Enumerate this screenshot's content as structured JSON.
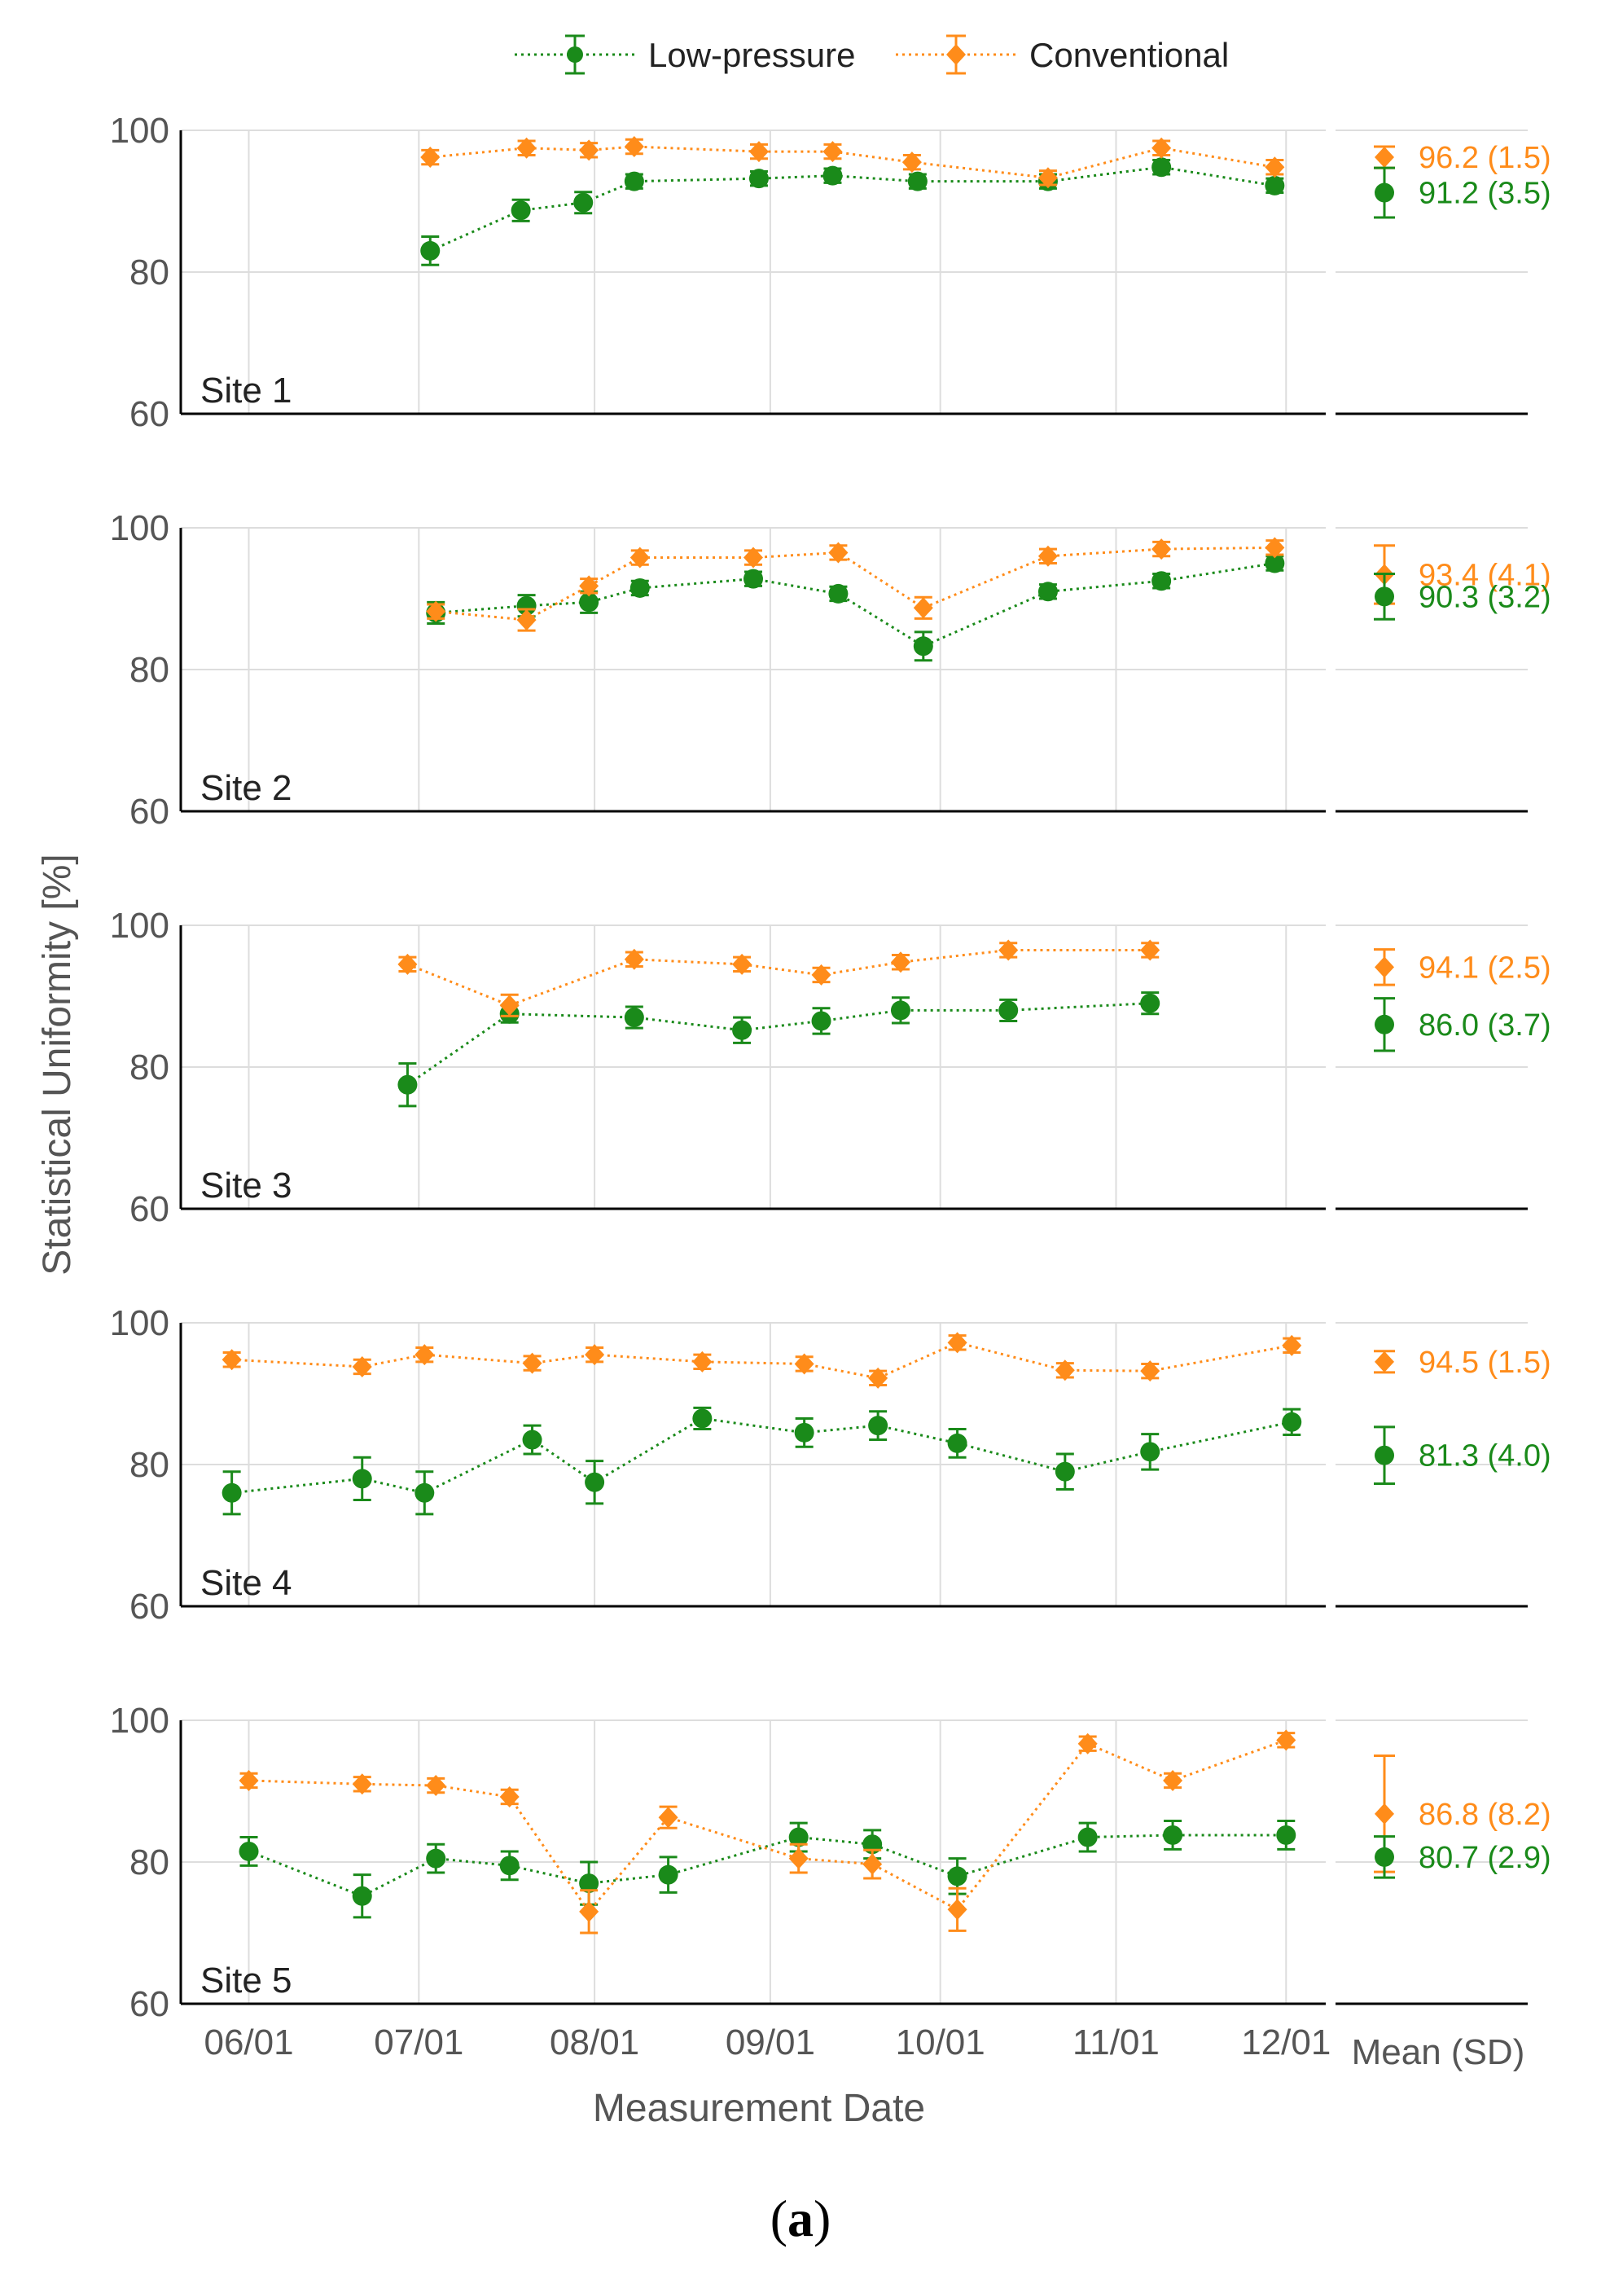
{
  "colors": {
    "low": "#1a8a1a",
    "conv": "#ff8c1a",
    "grid": "#dddddd",
    "axis": "#000000"
  },
  "legend": {
    "low_label": "Low-pressure",
    "conv_label": "Conventional"
  },
  "labels": {
    "ylabel": "Statistical Uniformity [%]",
    "xlabel": "Measurement Date",
    "mean_header": "Mean (SD)",
    "caption_open": "(",
    "caption_letter": "a",
    "caption_close": ")"
  },
  "chart_data": {
    "type": "line",
    "x_ticks": [
      {
        "date": "06/01",
        "day": 0
      },
      {
        "date": "07/01",
        "day": 30
      },
      {
        "date": "08/01",
        "day": 61
      },
      {
        "date": "09/01",
        "day": 92
      },
      {
        "date": "10/01",
        "day": 122
      },
      {
        "date": "11/01",
        "day": 153
      },
      {
        "date": "12/01",
        "day": 183
      }
    ],
    "x_unit": "days since 06/01",
    "xlim": [
      -12,
      190
    ],
    "ylim": [
      60,
      100
    ],
    "y_ticks": [
      60,
      80,
      100
    ],
    "grid": true,
    "legend_position": "top-center",
    "panels": [
      {
        "label": "Site 1",
        "series": [
          {
            "name": "Low-pressure",
            "points": [
              [
                32,
                83,
                2.0
              ],
              [
                48,
                88.7,
                1.5
              ],
              [
                59,
                89.8,
                1.5
              ],
              [
                68,
                92.8,
                1.0
              ],
              [
                90,
                93.2,
                1.0
              ],
              [
                103,
                93.6,
                1.0
              ],
              [
                118,
                92.8,
                1.0
              ],
              [
                141,
                92.8,
                1.0
              ],
              [
                161,
                94.8,
                1.0
              ],
              [
                181,
                92.2,
                1.0
              ]
            ]
          },
          {
            "name": "Conventional",
            "points": [
              [
                32,
                96.2,
                1.0
              ],
              [
                49,
                97.5,
                1.0
              ],
              [
                60,
                97.2,
                1.0
              ],
              [
                68,
                97.7,
                1.0
              ],
              [
                90,
                97.0,
                1.0
              ],
              [
                103,
                97.0,
                1.0
              ],
              [
                117,
                95.5,
                1.0
              ],
              [
                141,
                93.3,
                1.0
              ],
              [
                161,
                97.5,
                1.0
              ],
              [
                181,
                94.8,
                1.0
              ]
            ]
          }
        ],
        "mean": {
          "conv": {
            "value": 96.2,
            "sd": 1.5,
            "label": "96.2 (1.5)"
          },
          "low": {
            "value": 91.2,
            "sd": 3.5,
            "label": "91.2 (3.5)"
          }
        }
      },
      {
        "label": "Site 2",
        "series": [
          {
            "name": "Low-pressure",
            "points": [
              [
                33,
                88.0,
                1.5
              ],
              [
                49,
                89.0,
                1.5
              ],
              [
                60,
                89.5,
                1.5
              ],
              [
                69,
                91.5,
                1.0
              ],
              [
                89,
                92.8,
                1.0
              ],
              [
                104,
                90.7,
                1.0
              ],
              [
                119,
                83.3,
                2.0
              ],
              [
                141,
                91.0,
                1.0
              ],
              [
                161,
                92.5,
                1.0
              ],
              [
                181,
                95.0,
                1.0
              ]
            ]
          },
          {
            "name": "Conventional",
            "points": [
              [
                33,
                88.2,
                1.0
              ],
              [
                49,
                87.0,
                1.5
              ],
              [
                60,
                91.8,
                1.0
              ],
              [
                69,
                95.8,
                1.0
              ],
              [
                89,
                95.8,
                1.0
              ],
              [
                104,
                96.5,
                1.0
              ],
              [
                119,
                88.7,
                1.5
              ],
              [
                141,
                96.0,
                1.0
              ],
              [
                161,
                97.0,
                1.0
              ],
              [
                181,
                97.2,
                1.0
              ]
            ]
          }
        ],
        "mean": {
          "conv": {
            "value": 93.4,
            "sd": 4.1,
            "label": "93.4 (4.1)"
          },
          "low": {
            "value": 90.3,
            "sd": 3.2,
            "label": "90.3 (3.2)"
          }
        }
      },
      {
        "label": "Site 3",
        "series": [
          {
            "name": "Low-pressure",
            "points": [
              [
                28,
                77.5,
                3.0
              ],
              [
                46,
                87.5,
                1.2
              ],
              [
                68,
                87.0,
                1.5
              ],
              [
                87,
                85.2,
                1.8
              ],
              [
                101,
                86.5,
                1.8
              ],
              [
                115,
                88.0,
                1.8
              ],
              [
                134,
                88.0,
                1.5
              ],
              [
                159,
                89.0,
                1.5
              ]
            ]
          },
          {
            "name": "Conventional",
            "points": [
              [
                28,
                94.5,
                1.0
              ],
              [
                46,
                88.7,
                1.5
              ],
              [
                68,
                95.2,
                1.0
              ],
              [
                87,
                94.5,
                1.0
              ],
              [
                101,
                93.0,
                1.0
              ],
              [
                115,
                94.8,
                1.0
              ],
              [
                134,
                96.5,
                1.0
              ],
              [
                159,
                96.5,
                1.0
              ]
            ]
          }
        ],
        "mean": {
          "conv": {
            "value": 94.1,
            "sd": 2.5,
            "label": "94.1 (2.5)"
          },
          "low": {
            "value": 86.0,
            "sd": 3.7,
            "label": "86.0 (3.7)"
          }
        }
      },
      {
        "label": "Site 4",
        "series": [
          {
            "name": "Low-pressure",
            "points": [
              [
                -3,
                76.0,
                3.0
              ],
              [
                20,
                78.0,
                3.0
              ],
              [
                31,
                76.0,
                3.0
              ],
              [
                50,
                83.5,
                2.0
              ],
              [
                61,
                77.5,
                3.0
              ],
              [
                80,
                86.5,
                1.5
              ],
              [
                98,
                84.5,
                2.0
              ],
              [
                111,
                85.5,
                2.0
              ],
              [
                125,
                83.0,
                2.0
              ],
              [
                144,
                79.0,
                2.5
              ],
              [
                159,
                81.8,
                2.5
              ],
              [
                184,
                86.0,
                1.8
              ]
            ]
          },
          {
            "name": "Conventional",
            "points": [
              [
                -3,
                94.8,
                1.0
              ],
              [
                20,
                93.8,
                1.0
              ],
              [
                31,
                95.5,
                1.0
              ],
              [
                50,
                94.3,
                1.0
              ],
              [
                61,
                95.5,
                1.0
              ],
              [
                80,
                94.5,
                1.0
              ],
              [
                98,
                94.2,
                1.0
              ],
              [
                111,
                92.2,
                1.0
              ],
              [
                125,
                97.2,
                1.0
              ],
              [
                144,
                93.3,
                1.0
              ],
              [
                159,
                93.2,
                1.0
              ],
              [
                184,
                96.8,
                1.0
              ]
            ]
          }
        ],
        "mean": {
          "conv": {
            "value": 94.5,
            "sd": 1.5,
            "label": "94.5 (1.5)"
          },
          "low": {
            "value": 81.3,
            "sd": 4.0,
            "label": "81.3 (4.0)"
          }
        }
      },
      {
        "label": "Site 5",
        "series": [
          {
            "name": "Low-pressure",
            "points": [
              [
                0,
                81.5,
                2.0
              ],
              [
                20,
                75.2,
                3.0
              ],
              [
                33,
                80.5,
                2.0
              ],
              [
                46,
                79.5,
                2.0
              ],
              [
                60,
                77.0,
                3.0
              ],
              [
                74,
                78.2,
                2.5
              ],
              [
                97,
                83.5,
                2.0
              ],
              [
                110,
                82.5,
                2.0
              ],
              [
                125,
                78.0,
                2.5
              ],
              [
                148,
                83.5,
                2.0
              ],
              [
                163,
                83.8,
                2.0
              ],
              [
                183,
                83.8,
                2.0
              ]
            ]
          },
          {
            "name": "Conventional",
            "points": [
              [
                0,
                91.5,
                1.0
              ],
              [
                20,
                91.0,
                1.0
              ],
              [
                33,
                90.8,
                1.0
              ],
              [
                46,
                89.2,
                1.0
              ],
              [
                60,
                73.0,
                3.0
              ],
              [
                74,
                86.3,
                1.5
              ],
              [
                97,
                80.5,
                2.0
              ],
              [
                110,
                79.7,
                2.0
              ],
              [
                125,
                73.3,
                3.0
              ],
              [
                148,
                96.7,
                1.0
              ],
              [
                163,
                91.5,
                1.0
              ],
              [
                183,
                97.2,
                1.0
              ]
            ]
          }
        ],
        "mean": {
          "conv": {
            "value": 86.8,
            "sd": 8.2,
            "label": "86.8 (8.2)"
          },
          "low": {
            "value": 80.7,
            "sd": 2.9,
            "label": "80.7 (2.9)"
          }
        }
      }
    ]
  }
}
